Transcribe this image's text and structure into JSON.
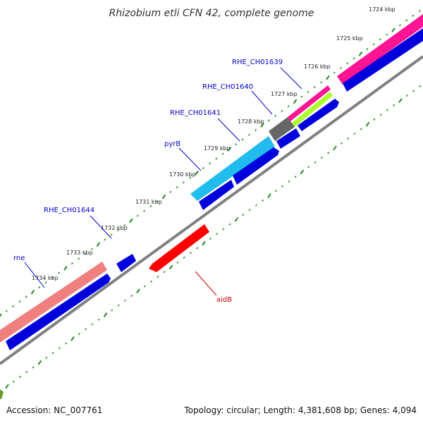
{
  "title": "Rhizobium etli CFN 42, complete genome",
  "accession": "Accession: NC_007761",
  "summary": "Topology: circular; Length: 4,381,608 bp; Genes: 4,094",
  "scale_labels": [
    "1724 kbp",
    "1725 kbp",
    "1726 kbp",
    "1727 kbp",
    "1728 kbp",
    "1729 kbp",
    "1730 kbp",
    "1731 kbp",
    "1732 kbp",
    "1733 kbp",
    "1734 kbp"
  ],
  "gene_labels": [
    {
      "text": "RHE_CH01639",
      "color": "#0000cc"
    },
    {
      "text": "RHE_CH01640",
      "color": "#0000cc"
    },
    {
      "text": "RHE_CH01641",
      "color": "#0000cc"
    },
    {
      "text": "pyrB",
      "color": "#0000cc"
    },
    {
      "text": "RHE_CH01644",
      "color": "#0000cc"
    },
    {
      "text": "rne",
      "color": "#0000cc"
    },
    {
      "text": "aidB",
      "color": "#cc0000"
    }
  ],
  "colors": {
    "backbone": "#808080",
    "cds_forward": "#0000dd",
    "cds_reverse": "#ff0000",
    "tick": "#228b22",
    "feature_pink": "#ff1493",
    "feature_salmon": "#f08080",
    "feature_cyan": "#22bbee",
    "feature_lime": "#adff2f",
    "feature_gray": "#666666"
  }
}
